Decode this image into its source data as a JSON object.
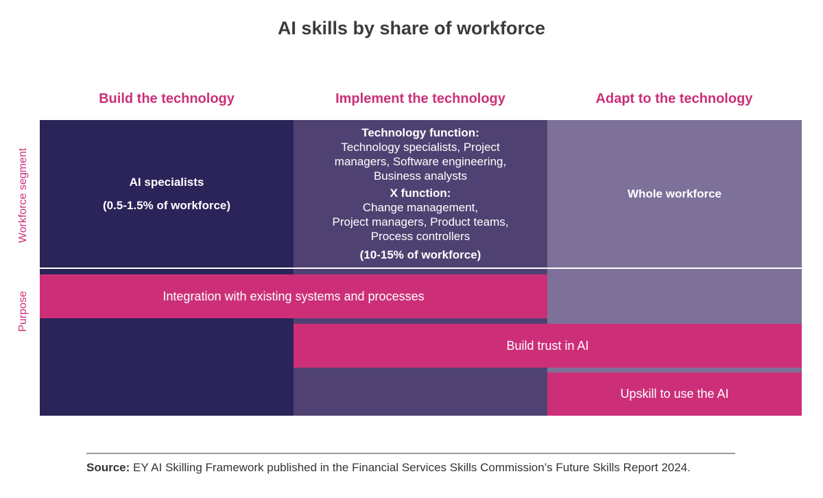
{
  "title": "AI skills by share of workforce",
  "columns": [
    "Build the technology",
    "Implement the technology",
    "Adapt to the technology"
  ],
  "row_labels": {
    "segment": "Workforce segment",
    "purpose": "Purpose"
  },
  "segments": {
    "build": {
      "name": "AI specialists",
      "share": "(0.5-1.5% of workforce)"
    },
    "implement": {
      "tech_heading": "Technology function:",
      "tech_lines": [
        "Technology specialists, Project",
        "managers, Software engineering,",
        "Business analysts"
      ],
      "x_heading": "X function:",
      "x_lines": [
        "Change management,",
        "Project managers, Product teams,",
        "Process controllers"
      ],
      "share": "(10-15% of workforce)"
    },
    "adapt": {
      "name": "Whole workforce"
    }
  },
  "purposes": [
    "Integration with existing systems and processes",
    "Build trust in AI",
    "Upskill to use the AI"
  ],
  "source": {
    "label": "Source:",
    "text": " EY AI Skilling Framework published in the Financial Services Skills Commission’s Future Skills Report 2024."
  },
  "colors": {
    "build": "#2a2459",
    "implement": "#4f4272",
    "adapt": "#7d7199",
    "accent": "#cc2f78"
  }
}
